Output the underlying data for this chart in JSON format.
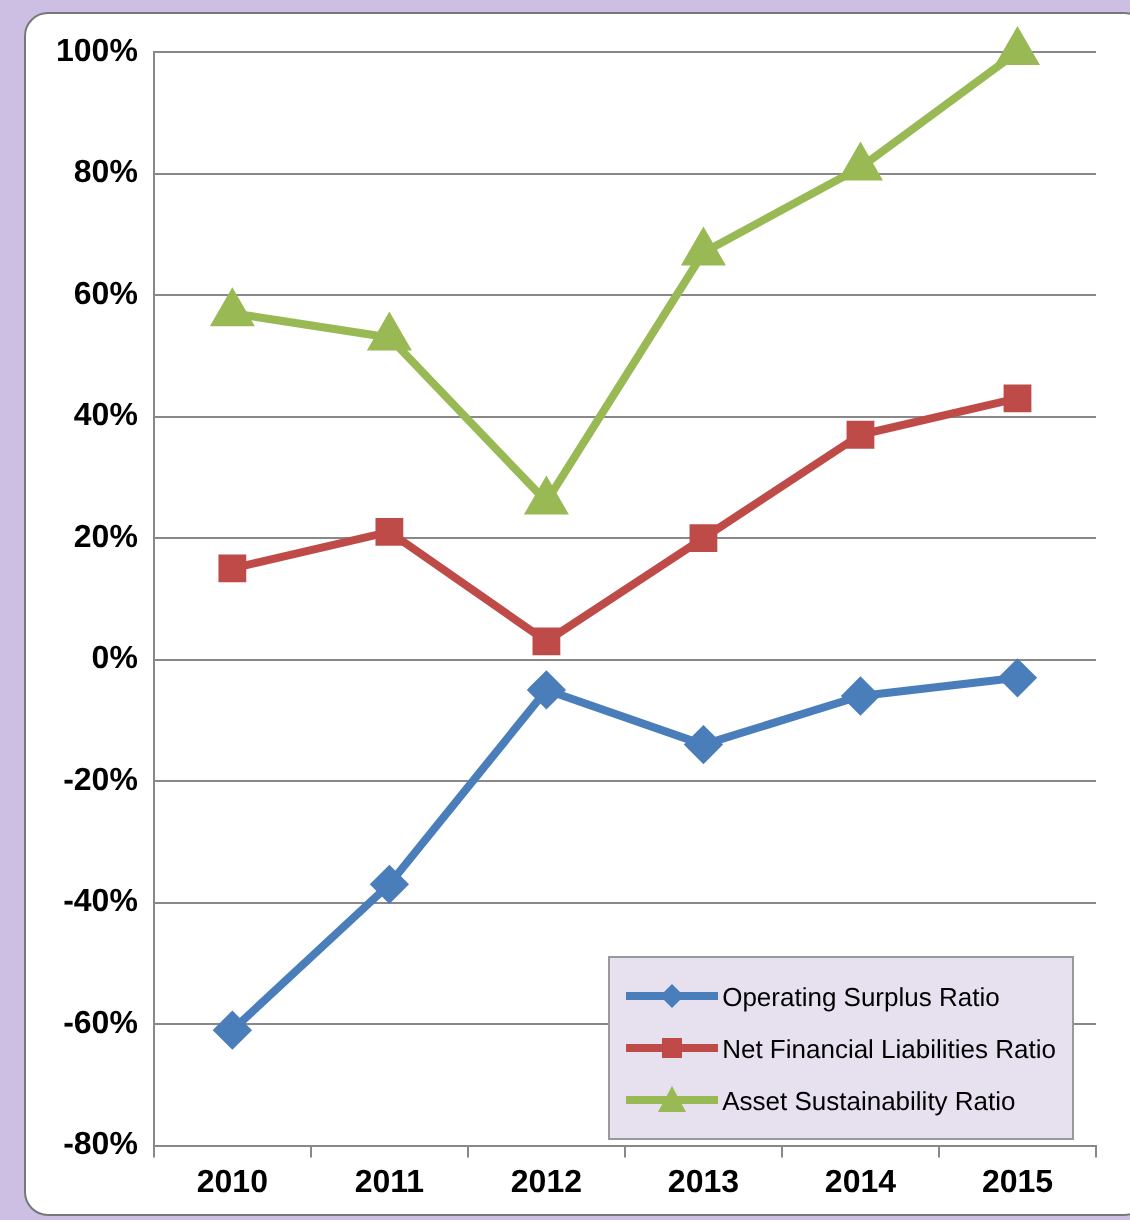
{
  "chart_data": {
    "type": "line",
    "categories": [
      "2010",
      "2011",
      "2012",
      "2013",
      "2014",
      "2015"
    ],
    "series": [
      {
        "name": "Operating Surplus Ratio",
        "color": "#4a7ebb",
        "marker": "diamond",
        "values": [
          -61,
          -37,
          -5,
          -14,
          -6,
          -3
        ]
      },
      {
        "name": "Net Financial Liabilities Ratio",
        "color": "#be4b48",
        "marker": "square",
        "values": [
          15,
          21,
          3,
          20,
          37,
          43
        ]
      },
      {
        "name": "Asset Sustainability Ratio",
        "color": "#98b954",
        "marker": "triangle",
        "values": [
          57,
          53,
          26,
          67,
          81,
          100
        ]
      }
    ],
    "ylim": [
      -80,
      100
    ],
    "yticks": [
      {
        "value": -80,
        "label": "-80%"
      },
      {
        "value": -60,
        "label": "-60%"
      },
      {
        "value": -40,
        "label": "-40%"
      },
      {
        "value": -20,
        "label": "-20%"
      },
      {
        "value": 0,
        "label": "0%"
      },
      {
        "value": 20,
        "label": "20%"
      },
      {
        "value": 40,
        "label": "40%"
      },
      {
        "value": 60,
        "label": "60%"
      },
      {
        "value": 80,
        "label": "80%"
      },
      {
        "value": 100,
        "label": "100%"
      }
    ],
    "grid": "y",
    "legend": "bottom right",
    "line_style": "solid"
  }
}
